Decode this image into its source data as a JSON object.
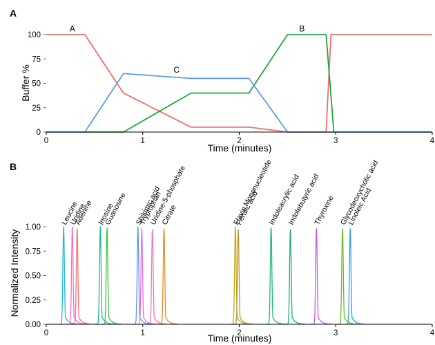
{
  "figure": {
    "panel_a_label": "A",
    "panel_b_label": "B"
  },
  "chart_data": [
    {
      "panel": "A",
      "type": "line",
      "xlabel": "Time (minutes)",
      "ylabel": "Buffer %",
      "xlim": [
        0,
        4
      ],
      "ylim": [
        0,
        100
      ],
      "xticks": [
        0,
        1,
        2,
        3,
        4
      ],
      "yticks": [
        0,
        25,
        50,
        75,
        100
      ],
      "grid": false,
      "series": [
        {
          "name": "A",
          "color": "#f26d6d",
          "label_at": [
            0.27,
            101
          ],
          "points": [
            [
              0,
              100
            ],
            [
              0.4,
              100
            ],
            [
              0.8,
              40
            ],
            [
              1.5,
              5
            ],
            [
              2.1,
              5
            ],
            [
              2.5,
              0
            ],
            [
              2.9,
              0
            ],
            [
              2.95,
              100
            ],
            [
              4,
              100
            ]
          ]
        },
        {
          "name": "B",
          "color": "#1aab3a",
          "label_at": [
            2.65,
            101
          ],
          "points": [
            [
              0,
              0
            ],
            [
              0.8,
              0
            ],
            [
              1.5,
              40
            ],
            [
              2.1,
              40
            ],
            [
              2.5,
              100
            ],
            [
              2.9,
              100
            ],
            [
              2.98,
              0
            ],
            [
              4,
              0
            ]
          ]
        },
        {
          "name": "C",
          "color": "#5b9bea",
          "label_at": [
            1.35,
            59
          ],
          "points": [
            [
              0,
              0
            ],
            [
              0.4,
              0
            ],
            [
              0.8,
              60
            ],
            [
              1.5,
              55
            ],
            [
              2.1,
              55
            ],
            [
              2.5,
              0
            ],
            [
              4,
              0
            ]
          ]
        }
      ]
    },
    {
      "panel": "B",
      "type": "line",
      "xlabel": "Time (minutes)",
      "ylabel": "Normalized Intensity",
      "xlim": [
        0,
        4
      ],
      "ylim": [
        0,
        1.0
      ],
      "xticks": [
        0,
        1,
        2,
        3,
        4
      ],
      "yticks": [
        "0.00",
        "0.25",
        "0.50",
        "0.75",
        "1.00"
      ],
      "grid": false,
      "series": [
        {
          "name": "Leucine",
          "rt": 0.18,
          "color": "#21b5d6",
          "peak": 1.0
        },
        {
          "name": "Uridine",
          "rt": 0.27,
          "color": "#f06ad6",
          "peak": 1.0
        },
        {
          "name": "Adenine",
          "rt": 0.32,
          "color": "#f37070",
          "peak": 0.98
        },
        {
          "name": "Inosine",
          "rt": 0.56,
          "color": "#1ab89a",
          "peak": 1.0
        },
        {
          "name": "Guanosine",
          "rt": 0.63,
          "color": "#3ec43e",
          "peak": 0.99
        },
        {
          "name": "Shikimic acid",
          "rt": 0.95,
          "color": "#5b9bea",
          "peak": 1.0
        },
        {
          "name": "Tryptophan",
          "rt": 0.99,
          "color": "#e36ee3",
          "peak": 0.98
        },
        {
          "name": "Uridine-5-phosphate",
          "rt": 1.1,
          "color": "#f272b5",
          "peak": 0.97
        },
        {
          "name": "Citrate",
          "rt": 1.22,
          "color": "#e88a22",
          "peak": 0.98
        },
        {
          "name": "Flavin Mononucleotide",
          "rt": 1.96,
          "color": "#c9a21a",
          "peak": 1.0
        },
        {
          "name": "Ferulic acid",
          "rt": 1.99,
          "color": "#b89a28",
          "peak": 0.97
        },
        {
          "name": "Indoleacrylic acid",
          "rt": 2.33,
          "color": "#1ab86c",
          "peak": 0.99
        },
        {
          "name": "Indolebutyric acid",
          "rt": 2.53,
          "color": "#16ad7d",
          "peak": 0.97
        },
        {
          "name": "Thyroxine",
          "rt": 2.8,
          "color": "#b95ee8",
          "peak": 0.98
        },
        {
          "name": "Glycodeoxycholic acid",
          "rt": 3.07,
          "color": "#6cb81f",
          "peak": 0.98
        },
        {
          "name": "Linoleic Acid",
          "rt": 3.15,
          "color": "#2aa3e0",
          "peak": 0.98
        }
      ]
    }
  ]
}
